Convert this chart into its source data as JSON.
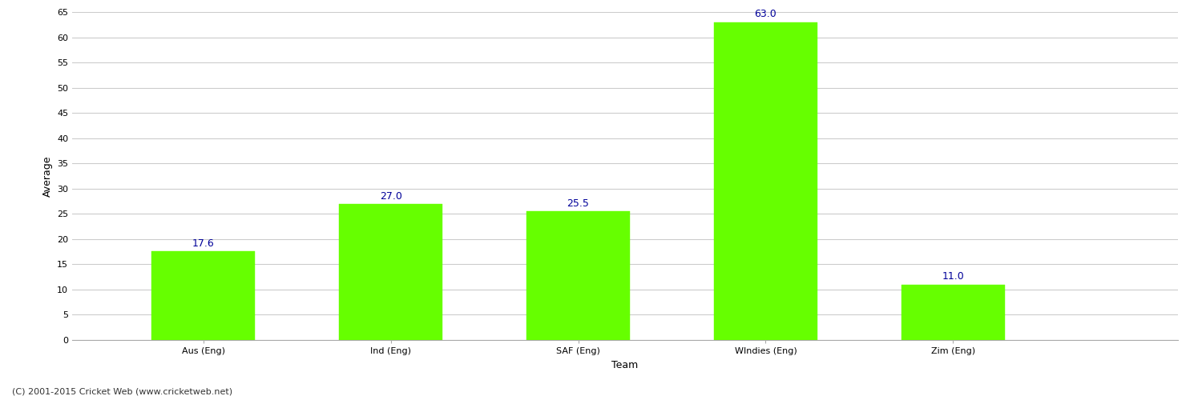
{
  "categories": [
    "Aus (Eng)",
    "Ind (Eng)",
    "SAF (Eng)",
    "WIndies (Eng)",
    "Zim (Eng)"
  ],
  "values": [
    17.6,
    27.0,
    25.5,
    63.0,
    11.0
  ],
  "bar_color": "#66ff00",
  "bar_edge_color": "#66ff00",
  "xlabel": "Team",
  "ylabel": "Average",
  "ylim": [
    0,
    65
  ],
  "yticks": [
    0,
    5,
    10,
    15,
    20,
    25,
    30,
    35,
    40,
    45,
    50,
    55,
    60,
    65
  ],
  "annotation_color": "#000099",
  "annotation_fontsize": 9,
  "grid_color": "#cccccc",
  "background_color": "#ffffff",
  "axis_label_fontsize": 9,
  "tick_fontsize": 8,
  "footer_text": "(C) 2001-2015 Cricket Web (www.cricketweb.net)",
  "footer_fontsize": 8,
  "footer_color": "#333333",
  "bar_width": 0.55,
  "xlim_left": -0.7,
  "xlim_right": 5.2
}
